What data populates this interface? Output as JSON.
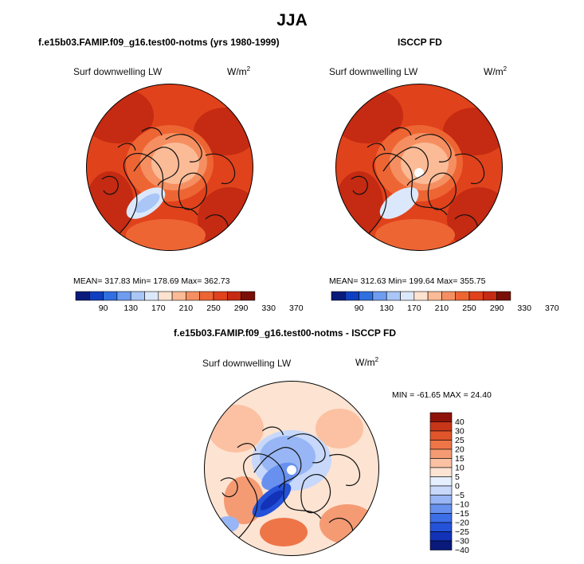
{
  "title": "JJA",
  "colors": {
    "abs_scale": [
      "#0a1a7a",
      "#0f3fbf",
      "#2f6fe0",
      "#6e9cf0",
      "#a9c6f7",
      "#dbe8fb",
      "#fde2cf",
      "#fbbb96",
      "#f58f61",
      "#ee6534",
      "#e0421c",
      "#c52a12",
      "#7a0f07"
    ],
    "diff_scale": [
      "#0a1a7a",
      "#1232b8",
      "#2452d8",
      "#3c6ee8",
      "#6891ef",
      "#98b6f5",
      "#c7d8fa",
      "#e6efff",
      "#fde3d2",
      "#fbc1a2",
      "#f59b73",
      "#ee7548",
      "#e0552a",
      "#c8361a",
      "#8e1209"
    ],
    "coast": "#111111"
  },
  "top_left": {
    "title": "f.e15b03.FAMIP.f09_g16.test00-notms (yrs 1980-1999)",
    "variable": "Surf downwelling LW",
    "units": "W/m",
    "units_sup": "2",
    "stats": "MEAN= 317.83   Min= 178.69   Max= 362.73"
  },
  "top_right": {
    "title": "ISCCP FD",
    "variable": "Surf downwelling LW",
    "units": "W/m",
    "units_sup": "2",
    "stats": "MEAN= 312.63   Min= 199.64   Max= 355.75"
  },
  "bottom": {
    "title": "f.e15b03.FAMIP.f09_g16.test00-notms - ISCCP FD",
    "variable": "Surf downwelling LW",
    "units": "W/m",
    "units_sup": "2",
    "stats": "MIN = -61.65  MAX =  24.40"
  },
  "abs_colorbar_labels": [
    "90",
    "130",
    "170",
    "210",
    "250",
    "290",
    "330",
    "370"
  ],
  "diff_colorbar_labels": [
    "40",
    "30",
    "25",
    "20",
    "15",
    "10",
    "5",
    "0",
    "−5",
    "−10",
    "−15",
    "−20",
    "−25",
    "−30",
    "−40"
  ]
}
